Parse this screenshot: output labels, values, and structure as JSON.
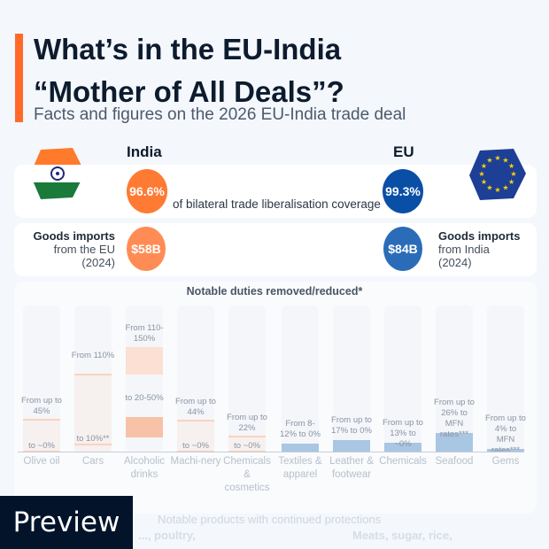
{
  "header": {
    "title": "What’s in the EU-India\n“Mother of All Deals”?",
    "subtitle": "Facts and figures on the 2026 EU-India trade deal"
  },
  "colors": {
    "accent": "#ff6a2b",
    "india": "#ff7a33",
    "eu": "#0a4fa6",
    "india_bar": "#f7c2a6",
    "eu_bar": "#a9c6e2"
  },
  "india": {
    "name": "India",
    "flag": "india-flag-icon",
    "coverage": "96.6%",
    "imports_value": "$58B",
    "imports_title": "Goods imports",
    "imports_sub1": "from the EU",
    "imports_sub2": "(2024)"
  },
  "eu": {
    "name": "EU",
    "flag": "eu-flag-icon",
    "coverage": "99.3%",
    "imports_value": "$84B",
    "imports_title": "Goods imports",
    "imports_sub1": "from India",
    "imports_sub2": "(2024)"
  },
  "coverage_label": "of bilateral trade liberalisation coverage",
  "chart_data": {
    "type": "bar",
    "title": "Notable duties removed/reduced*",
    "categories": [
      "Olive oil",
      "Cars",
      "Alcoholic drinks",
      "Machi-nery",
      "Chemicals & cosmetics",
      "Textiles & apparel",
      "Leather & footwear",
      "Chemicals",
      "Seafood",
      "Gems"
    ],
    "series": [
      {
        "side": "India",
        "items": [
          {
            "category": "Olive oil",
            "from": [
              45,
              45
            ],
            "to": [
              0,
              0
            ],
            "label_from": "From up to 45%",
            "label_to": "to ~0%"
          },
          {
            "category": "Cars",
            "from": [
              110,
              110
            ],
            "to": [
              10,
              10
            ],
            "label_from": "From 110%",
            "label_to": "to 10%**"
          },
          {
            "category": "Alcoholic drinks",
            "from": [
              110,
              150
            ],
            "to": [
              20,
              50
            ],
            "label_from": "From 110-150%",
            "label_to": "to 20-50%"
          },
          {
            "category": "Machi-nery",
            "from": [
              44,
              44
            ],
            "to": [
              0,
              0
            ],
            "label_from": "From up to 44%",
            "label_to": "to ~0%"
          },
          {
            "category": "Chemicals & cosmetics",
            "from": [
              22,
              22
            ],
            "to": [
              0,
              0
            ],
            "label_from": "From up to 22%",
            "label_to": "to ~0%"
          }
        ]
      },
      {
        "side": "EU",
        "items": [
          {
            "category": "Textiles & apparel",
            "from": [
              8,
              12
            ],
            "to": [
              0,
              0
            ],
            "label": "From 8-12% to 0%"
          },
          {
            "category": "Leather & footwear",
            "from": [
              17,
              17
            ],
            "to": [
              0,
              0
            ],
            "label": "From up to 17% to 0%"
          },
          {
            "category": "Chemicals",
            "from": [
              13,
              13
            ],
            "to": [
              0,
              0
            ],
            "label": "From up to 13% to ~0%"
          },
          {
            "category": "Seafood",
            "from": [
              26,
              26
            ],
            "to": [
              0,
              0
            ],
            "label": "From up to 26% to MFN rates***"
          },
          {
            "category": "Gems",
            "from": [
              4,
              4
            ],
            "to": [
              0,
              0
            ],
            "label": "From up to 4% to MFN rates***"
          }
        ]
      }
    ],
    "ylim": [
      0,
      210
    ]
  },
  "protections": {
    "title": "Notable products with continued protections",
    "left": "..., poultry,",
    "right": "Meats, sugar, rice,"
  },
  "preview_label": "Preview"
}
